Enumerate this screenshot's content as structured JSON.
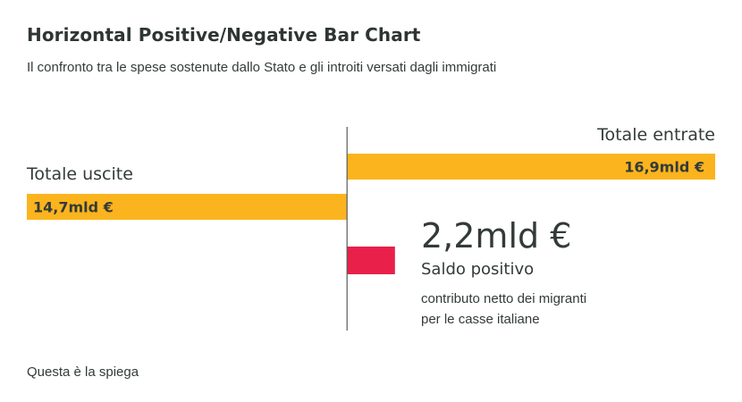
{
  "chart_data": {
    "type": "bar",
    "title": "Horizontal Positive/Negative Bar Chart",
    "subtitle": "Il confronto tra le spese sostenute dallo Stato e gli introiti versati dagli immigrati",
    "orientation": "horizontal",
    "diverging": true,
    "categories": [
      "Totale entrate",
      "Totale uscite"
    ],
    "values": [
      16.9,
      -14.7
    ],
    "value_labels": [
      "16,9mld €",
      "14,7mld €"
    ],
    "unit": "mld €",
    "xlim": [
      -14.7,
      16.9
    ],
    "grid": false,
    "bar_color": "#FBB41E",
    "balance": {
      "value": 2.2,
      "value_label": "2,2mld €",
      "label": "Saldo positivo",
      "description": [
        "contributo netto dei migranti",
        "per le casse italiane"
      ],
      "color": "#E8204A"
    },
    "axis_color": "#555c5a"
  },
  "footnote": "Questa è la spiega"
}
